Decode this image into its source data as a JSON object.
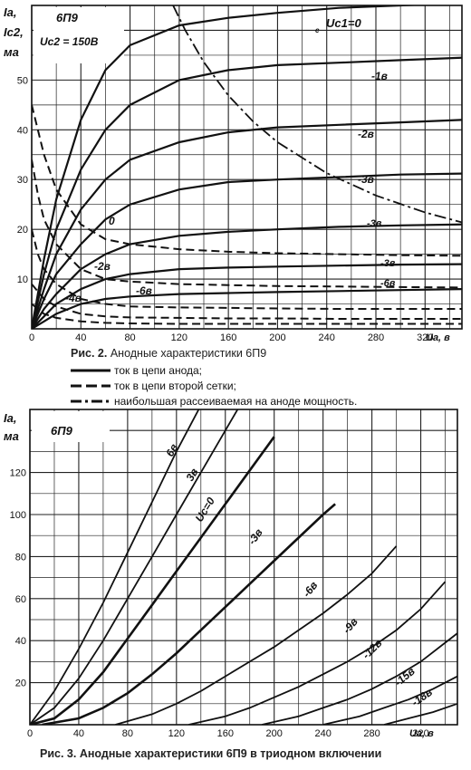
{
  "chart_data": [
    {
      "type": "line",
      "tube_label": "6П9",
      "subtitle": "Uc2 = 150В",
      "ylabel_lines": [
        "Ia,",
        "Ic2,",
        "ма"
      ],
      "xlabel": "Ua, в",
      "xlim": [
        0,
        350
      ],
      "ylim": [
        0,
        65
      ],
      "xticks": [
        "0",
        "40",
        "80",
        "120",
        "160",
        "200",
        "240",
        "280",
        "320"
      ],
      "yticks": [
        "10",
        "20",
        "30",
        "40",
        "50"
      ],
      "grid": true,
      "caption_prefix": "Рис. 2.",
      "caption": "Анодные характеристики 6П9",
      "legend": [
        {
          "style": "solid",
          "label": "ток в цепи анода;"
        },
        {
          "style": "dashed",
          "label": "ток в цепи второй сетки;"
        },
        {
          "style": "dashdot",
          "label": "наибольшая рассеиваемая на аноде мощность."
        }
      ],
      "series": [
        {
          "name": "Uc1=0",
          "kind": "anode",
          "x": [
            0,
            10,
            20,
            40,
            60,
            80,
            120,
            160,
            200,
            250,
            300,
            350
          ],
          "y": [
            0,
            14,
            26,
            42,
            52,
            57,
            61,
            62.5,
            63.5,
            64.5,
            65,
            65.5
          ]
        },
        {
          "name": "-1в",
          "kind": "anode",
          "x": [
            0,
            10,
            20,
            40,
            60,
            80,
            120,
            160,
            200,
            250,
            300,
            350
          ],
          "y": [
            0,
            11,
            20,
            32,
            40,
            45,
            50,
            52,
            53,
            53.5,
            54,
            54.5
          ]
        },
        {
          "name": "-2в",
          "kind": "anode",
          "x": [
            0,
            10,
            20,
            40,
            60,
            80,
            120,
            160,
            200,
            250,
            300,
            350
          ],
          "y": [
            0,
            8,
            15,
            24,
            30,
            34,
            37.5,
            39.5,
            40.5,
            41,
            41.5,
            42
          ]
        },
        {
          "name": "-3в",
          "kind": "anode",
          "x": [
            0,
            10,
            20,
            40,
            60,
            80,
            120,
            160,
            200,
            250,
            300,
            350
          ],
          "y": [
            0,
            6,
            11,
            17,
            22,
            25,
            28,
            29.5,
            30,
            30.5,
            31,
            31.2
          ]
        },
        {
          "name": "",
          "kind": "anode",
          "x": [
            0,
            10,
            20,
            40,
            60,
            80,
            120,
            160,
            200,
            250,
            300,
            350
          ],
          "y": [
            0,
            4,
            7,
            12,
            15,
            17,
            18.7,
            19.5,
            20,
            20.5,
            20.8,
            21
          ]
        },
        {
          "name": "",
          "kind": "anode",
          "x": [
            0,
            10,
            20,
            40,
            60,
            80,
            120,
            160,
            200,
            250,
            300,
            350
          ],
          "y": [
            0,
            2.5,
            5,
            8,
            10,
            11,
            12,
            12.3,
            12.5,
            12.7,
            12.9,
            13
          ]
        },
        {
          "name": "-6в",
          "kind": "anode",
          "x": [
            0,
            10,
            20,
            40,
            60,
            80,
            120,
            160,
            200,
            250,
            300,
            350
          ],
          "y": [
            0,
            1.5,
            3,
            5,
            6,
            6.5,
            7,
            7.2,
            7.4,
            7.6,
            7.8,
            8
          ]
        },
        {
          "name": "0",
          "kind": "screen",
          "x": [
            0,
            5,
            10,
            20,
            40,
            60,
            80,
            120,
            160,
            200,
            250,
            300,
            350
          ],
          "y": [
            45,
            40,
            35,
            28,
            21,
            18,
            17,
            16,
            15.5,
            15.2,
            15,
            14.8,
            14.7
          ]
        },
        {
          "name": "-2в",
          "kind": "screen",
          "x": [
            0,
            5,
            10,
            20,
            40,
            60,
            80,
            120,
            160,
            200,
            250,
            300,
            350
          ],
          "y": [
            34,
            27,
            22,
            17,
            12,
            10,
            9.5,
            9,
            8.8,
            8.6,
            8.5,
            8.4,
            8.3
          ]
        },
        {
          "name": "-4в",
          "kind": "screen",
          "x": [
            0,
            5,
            10,
            20,
            40,
            60,
            80,
            120,
            160,
            200,
            250,
            300,
            350
          ],
          "y": [
            20,
            15,
            12,
            9,
            6,
            5,
            4.5,
            4.3,
            4.2,
            4.1,
            4,
            4,
            4
          ]
        },
        {
          "name": "",
          "kind": "screen",
          "x": [
            0,
            10,
            20,
            40,
            60,
            80,
            120,
            160,
            200,
            250,
            300,
            350
          ],
          "y": [
            9,
            6,
            4.5,
            3,
            2.5,
            2.3,
            2.2,
            2.1,
            2.1,
            2,
            2,
            2
          ]
        },
        {
          "name": "",
          "kind": "screen",
          "x": [
            0,
            10,
            20,
            40,
            60,
            80,
            120,
            160,
            200,
            250,
            300,
            350
          ],
          "y": [
            5,
            3,
            2.2,
            1.5,
            1.2,
            1.1,
            1,
            1,
            1,
            1,
            1,
            1
          ]
        },
        {
          "name": "",
          "kind": "power",
          "x": [
            115,
            125,
            140,
            160,
            180,
            200,
            240,
            280,
            320,
            350
          ],
          "y": [
            65,
            60,
            53.6,
            46.9,
            41.7,
            37.5,
            31.3,
            26.8,
            23.4,
            21.4
          ]
        }
      ],
      "extra_labels": [
        "-3в",
        "-6в",
        "-4в"
      ]
    },
    {
      "type": "line",
      "tube_label": "6П9",
      "ylabel_lines": [
        "Ia,",
        "ма"
      ],
      "xlabel": "Ua, в",
      "xlim": [
        0,
        350
      ],
      "ylim": [
        0,
        150
      ],
      "xticks": [
        "0",
        "40",
        "80",
        "120",
        "160",
        "200",
        "240",
        "280",
        "320"
      ],
      "yticks": [
        "20",
        "40",
        "60",
        "80",
        "100",
        "120"
      ],
      "grid": true,
      "caption_prefix": "Рис. 3.",
      "caption": "Анодные характеристики 6П9 в триодном включении",
      "series": [
        {
          "name": "6в",
          "x": [
            0,
            20,
            40,
            60,
            80,
            100,
            120,
            140
          ],
          "y": [
            0,
            16,
            36,
            58,
            82,
            106,
            130,
            152
          ]
        },
        {
          "name": "3в",
          "x": [
            0,
            20,
            40,
            60,
            80,
            100,
            120,
            140,
            160,
            170
          ],
          "y": [
            0,
            8,
            22,
            40,
            60,
            80,
            100,
            120,
            140,
            150
          ]
        },
        {
          "name": "Uc=0",
          "x": [
            0,
            20,
            40,
            60,
            80,
            100,
            120,
            140,
            160,
            180,
            200
          ],
          "y": [
            0,
            3,
            12,
            25,
            41,
            57,
            73,
            89,
            105,
            121,
            137
          ]
        },
        {
          "name": "-3в",
          "x": [
            10,
            40,
            60,
            80,
            100,
            120,
            140,
            160,
            180,
            200,
            220,
            240,
            250
          ],
          "y": [
            0,
            3,
            8,
            15,
            24,
            34,
            45,
            56,
            67,
            78,
            89,
            100,
            105
          ]
        },
        {
          "name": "-6в",
          "x": [
            70,
            100,
            120,
            140,
            160,
            180,
            200,
            220,
            240,
            260,
            280,
            300
          ],
          "y": [
            0,
            5,
            10,
            16,
            23,
            30,
            37,
            45,
            53,
            62,
            72,
            85
          ]
        },
        {
          "name": "-9в",
          "x": [
            130,
            160,
            180,
            200,
            220,
            240,
            260,
            280,
            300,
            320,
            340
          ],
          "y": [
            0,
            4,
            8,
            13,
            18,
            24,
            30,
            37,
            45,
            55,
            68
          ]
        },
        {
          "name": "-12в",
          "x": [
            190,
            220,
            240,
            260,
            280,
            300,
            320,
            340,
            360
          ],
          "y": [
            0,
            4,
            8,
            12,
            17,
            23,
            30,
            39,
            48
          ]
        },
        {
          "name": "-15в",
          "x": [
            240,
            270,
            290,
            310,
            330,
            350,
            380
          ],
          "y": [
            0,
            4,
            8,
            12,
            17,
            23,
            30
          ]
        },
        {
          "name": "-18в",
          "x": [
            290,
            310,
            330,
            350,
            380
          ],
          "y": [
            0,
            3,
            6,
            10,
            16
          ]
        }
      ]
    }
  ]
}
